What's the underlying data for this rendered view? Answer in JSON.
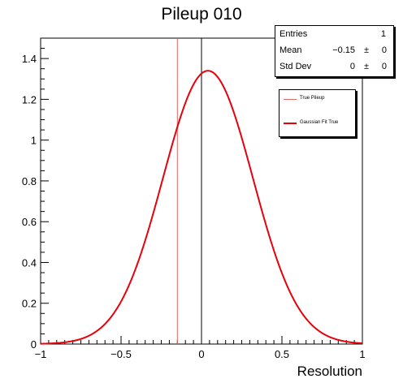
{
  "chart_data": {
    "type": "line",
    "title": "Pileup 010",
    "xlabel": "Resolution",
    "ylabel": "",
    "xlim": [
      -1,
      1
    ],
    "ylim": [
      0,
      1.5
    ],
    "x_ticks": [
      -1,
      -0.5,
      0,
      0.5,
      1
    ],
    "x_tick_labels": [
      "−1",
      "−0.5",
      "0",
      "0.5",
      "1"
    ],
    "y_ticks": [
      0,
      0.2,
      0.4,
      0.6,
      0.8,
      1,
      1.2,
      1.4
    ],
    "y_tick_labels": [
      "0",
      "0.2",
      "0.4",
      "0.6",
      "0.8",
      "1",
      "1.2",
      "1.4"
    ],
    "grid": false,
    "series": [
      {
        "name": "True Pileup",
        "kind": "vertical_line",
        "x": -0.15,
        "color": "#e06666"
      },
      {
        "name": "Gaussian Fit True",
        "kind": "gaussian",
        "amplitude": 1.34,
        "mean": 0.04,
        "sigma": 0.28,
        "color": "#e8000b"
      }
    ],
    "legend": {
      "position": "top-right",
      "entries": [
        "True Pileup",
        "Gaussian Fit True"
      ]
    },
    "stats": {
      "rows": [
        {
          "label": "Entries",
          "value": "1"
        },
        {
          "label": "Mean",
          "value": "−0.15",
          "pm": "±",
          "error": "0"
        },
        {
          "label": "Std Dev",
          "value": "0",
          "pm": "±",
          "error": "0"
        }
      ]
    }
  }
}
